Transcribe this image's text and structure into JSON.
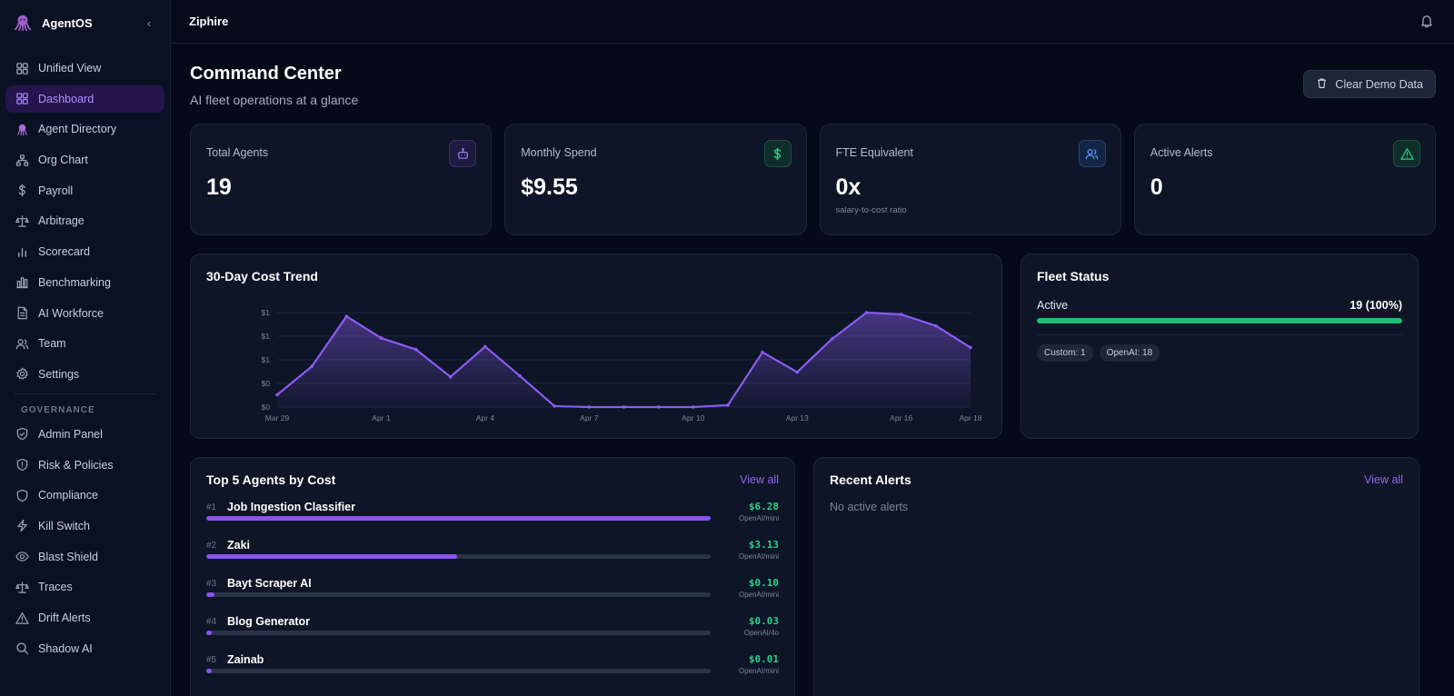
{
  "app": {
    "name": "AgentOS"
  },
  "topbar": {
    "workspace": "Ziphire"
  },
  "sidebar": {
    "items": [
      {
        "label": "Unified View",
        "icon": "grid-icon",
        "active": false
      },
      {
        "label": "Dashboard",
        "icon": "grid-icon",
        "active": true
      },
      {
        "label": "Agent Directory",
        "icon": "octopus-icon",
        "active": false
      },
      {
        "label": "Org Chart",
        "icon": "org-chart-icon",
        "active": false
      },
      {
        "label": "Payroll",
        "icon": "dollar-icon",
        "active": false
      },
      {
        "label": "Arbitrage",
        "icon": "scale-icon",
        "active": false
      },
      {
        "label": "Scorecard",
        "icon": "bar-chart-icon",
        "active": false
      },
      {
        "label": "Benchmarking",
        "icon": "chart-columns-icon",
        "active": false
      },
      {
        "label": "AI Workforce",
        "icon": "document-icon",
        "active": false
      },
      {
        "label": "Team",
        "icon": "users-icon",
        "active": false
      },
      {
        "label": "Settings",
        "icon": "gear-icon",
        "active": false
      }
    ],
    "governance_label": "GOVERNANCE",
    "governance_items": [
      {
        "label": "Admin Panel",
        "icon": "shield-check-icon"
      },
      {
        "label": "Risk & Policies",
        "icon": "shield-alert-icon"
      },
      {
        "label": "Compliance",
        "icon": "shield-icon"
      },
      {
        "label": "Kill Switch",
        "icon": "lightning-icon"
      },
      {
        "label": "Blast Shield",
        "icon": "eye-icon"
      },
      {
        "label": "Traces",
        "icon": "scale-icon"
      },
      {
        "label": "Drift Alerts",
        "icon": "warning-icon"
      },
      {
        "label": "Shadow AI",
        "icon": "search-icon"
      }
    ]
  },
  "header": {
    "title": "Command Center",
    "subtitle": "AI fleet operations at a glance",
    "clear_button": "Clear Demo Data"
  },
  "stats": [
    {
      "label": "Total Agents",
      "value": "19",
      "note": "",
      "icon": "robot-icon",
      "color": "#9b7cf5",
      "bg": "#1f1a3f"
    },
    {
      "label": "Monthly Spend",
      "value": "$9.55",
      "note": "",
      "icon": "dollar-icon",
      "color": "#2ecf8a",
      "bg": "#0f2e2a"
    },
    {
      "label": "FTE Equivalent",
      "value": "0x",
      "note": "salary-to-cost ratio",
      "icon": "users-icon",
      "color": "#5b9bf5",
      "bg": "#132545"
    },
    {
      "label": "Active Alerts",
      "value": "0",
      "note": "",
      "icon": "warning-icon",
      "color": "#2ecf8a",
      "bg": "#0f2e2a"
    }
  ],
  "chart_data": {
    "type": "area",
    "title": "30-Day Cost Trend",
    "x_tick_labels": [
      "Mar 29",
      "Apr 1",
      "Apr 4",
      "Apr 7",
      "Apr 10",
      "Apr 13",
      "Apr 16",
      "Apr 18"
    ],
    "y_tick_labels": [
      "$1",
      "$1",
      "$1",
      "$0",
      "$0"
    ],
    "x": [
      "Mar 29",
      "Mar 30",
      "Mar 31",
      "Apr 1",
      "Apr 2",
      "Apr 3",
      "Apr 4",
      "Apr 5",
      "Apr 6",
      "Apr 7",
      "Apr 8",
      "Apr 9",
      "Apr 10",
      "Apr 11",
      "Apr 12",
      "Apr 13",
      "Apr 14",
      "Apr 15",
      "Apr 16",
      "Apr 17",
      "Apr 18"
    ],
    "values": [
      0.13,
      0.43,
      0.96,
      0.73,
      0.61,
      0.32,
      0.64,
      0.33,
      0.01,
      0.0,
      0.0,
      0.0,
      0.0,
      0.02,
      0.58,
      0.37,
      0.72,
      1.0,
      0.98,
      0.86,
      0.63
    ],
    "ylim": [
      0,
      1.0
    ],
    "grid": true,
    "color": "#8a5cf0"
  },
  "fleet": {
    "title": "Fleet Status",
    "active_label": "Active",
    "active_value": "19 (100%)",
    "active_fraction": 1.0,
    "chips": [
      "Custom: 1",
      "OpenAI: 18"
    ]
  },
  "top_agents": {
    "title": "Top 5 Agents by Cost",
    "view_all": "View all",
    "items": [
      {
        "rank": "#1",
        "name": "Job Ingestion Classifier",
        "cost": "$6.28",
        "model": "OpenAI/mini",
        "fraction": 1.0
      },
      {
        "rank": "#2",
        "name": "Zaki",
        "cost": "$3.13",
        "model": "OpenAI/mini",
        "fraction": 0.498
      },
      {
        "rank": "#3",
        "name": "Bayt Scraper AI",
        "cost": "$0.10",
        "model": "OpenAI/mini",
        "fraction": 0.016
      },
      {
        "rank": "#4",
        "name": "Blog Generator",
        "cost": "$0.03",
        "model": "OpenAI/4o",
        "fraction": 0.005
      },
      {
        "rank": "#5",
        "name": "Zainab",
        "cost": "$0.01",
        "model": "OpenAI/mini",
        "fraction": 0.002
      }
    ]
  },
  "alerts": {
    "title": "Recent Alerts",
    "view_all": "View all",
    "empty": "No active alerts"
  }
}
